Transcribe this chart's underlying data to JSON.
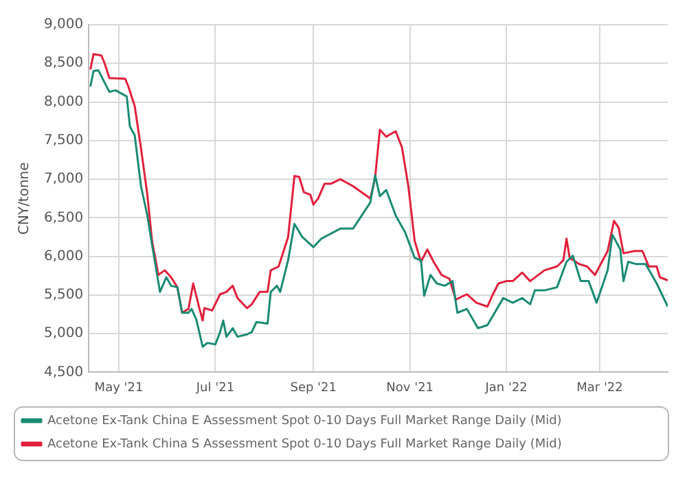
{
  "chart_data": {
    "type": "line",
    "ylabel": "CNY/tonne",
    "xlim": [
      "2021-04-12",
      "2022-04-13"
    ],
    "xticks": [
      {
        "value": "2021-05-01",
        "label": "May '21"
      },
      {
        "value": "2021-07-01",
        "label": "Jul '21"
      },
      {
        "value": "2021-09-01",
        "label": "Sep '21"
      },
      {
        "value": "2021-11-01",
        "label": "Nov '21"
      },
      {
        "value": "2022-01-01",
        "label": "Jan '22"
      },
      {
        "value": "2022-03-01",
        "label": "Mar '22"
      }
    ],
    "ylim": [
      4500,
      9000
    ],
    "yticks": [
      {
        "value": 4500,
        "label": "4,500"
      },
      {
        "value": 5000,
        "label": "5,000"
      },
      {
        "value": 5500,
        "label": "5,500"
      },
      {
        "value": 6000,
        "label": "6,000"
      },
      {
        "value": 6500,
        "label": "6,500"
      },
      {
        "value": 7000,
        "label": "7,000"
      },
      {
        "value": 7500,
        "label": "7,500"
      },
      {
        "value": 8000,
        "label": "8,000"
      },
      {
        "value": 8500,
        "label": "8,500"
      },
      {
        "value": 9000,
        "label": "9,000"
      }
    ],
    "grid": true,
    "legend": "bottom",
    "marker": "none",
    "line_style": "solid",
    "series": [
      {
        "name": "Acetone Ex-Tank China E Assessment Spot 0-10 Days Full Market Range Daily (Mid)",
        "color": "#1a8a73",
        "x": [
          "2021-04-13",
          "2021-04-15",
          "2021-04-18",
          "2021-04-21",
          "2021-04-25",
          "2021-04-29",
          "2021-05-06",
          "2021-05-08",
          "2021-05-11",
          "2021-05-15",
          "2021-05-19",
          "2021-05-22",
          "2021-05-27",
          "2021-05-31",
          "2021-06-03",
          "2021-06-07",
          "2021-06-10",
          "2021-06-14",
          "2021-06-16",
          "2021-06-19",
          "2021-06-23",
          "2021-06-26",
          "2021-07-01",
          "2021-07-04",
          "2021-07-06",
          "2021-07-08",
          "2021-07-12",
          "2021-07-15",
          "2021-07-21",
          "2021-07-24",
          "2021-07-27",
          "2021-08-03",
          "2021-08-05",
          "2021-08-09",
          "2021-08-11",
          "2021-08-16",
          "2021-08-20",
          "2021-08-25",
          "2021-09-01",
          "2021-09-06",
          "2021-09-18",
          "2021-09-26",
          "2021-09-28",
          "2021-10-07",
          "2021-10-10",
          "2021-10-13",
          "2021-10-17",
          "2021-10-23",
          "2021-10-29",
          "2021-11-04",
          "2021-11-08",
          "2021-11-10",
          "2021-11-14",
          "2021-11-18",
          "2021-11-23",
          "2021-11-28",
          "2021-12-01",
          "2021-12-07",
          "2021-12-14",
          "2021-12-20",
          "2021-12-26",
          "2021-12-30",
          "2022-01-05",
          "2022-01-11",
          "2022-01-16",
          "2022-01-19",
          "2022-01-25",
          "2022-02-02",
          "2022-02-08",
          "2022-02-12",
          "2022-02-17",
          "2022-02-22",
          "2022-02-27",
          "2022-03-06",
          "2022-03-09",
          "2022-03-14",
          "2022-03-16",
          "2022-03-19",
          "2022-03-24",
          "2022-03-30",
          "2022-04-06",
          "2022-04-13"
        ],
        "values": [
          8200,
          8400,
          8410,
          8290,
          8130,
          8150,
          8070,
          7680,
          7570,
          6910,
          6530,
          6150,
          5540,
          5730,
          5620,
          5600,
          5270,
          5270,
          5320,
          5180,
          4830,
          4880,
          4860,
          5020,
          5170,
          4960,
          5070,
          4960,
          4990,
          5020,
          5150,
          5130,
          5540,
          5620,
          5540,
          5950,
          6420,
          6250,
          6120,
          6230,
          6360,
          6360,
          6420,
          6700,
          7050,
          6780,
          6860,
          6530,
          6310,
          5980,
          5950,
          5490,
          5760,
          5650,
          5620,
          5680,
          5270,
          5320,
          5070,
          5110,
          5320,
          5460,
          5400,
          5460,
          5380,
          5560,
          5560,
          5600,
          5930,
          6010,
          5680,
          5680,
          5400,
          5820,
          6280,
          6090,
          5680,
          5930,
          5900,
          5900,
          5650,
          5350
        ]
      },
      {
        "name": "Acetone Ex-Tank China S Assessment Spot 0-10 Days Full Market Range Daily (Mid)",
        "color": "#e0203c",
        "x": [
          "2021-04-13",
          "2021-04-15",
          "2021-04-20",
          "2021-04-22",
          "2021-04-25",
          "2021-05-05",
          "2021-05-07",
          "2021-05-11",
          "2021-05-15",
          "2021-05-19",
          "2021-05-22",
          "2021-05-26",
          "2021-05-30",
          "2021-06-03",
          "2021-06-07",
          "2021-06-10",
          "2021-06-14",
          "2021-06-17",
          "2021-06-21",
          "2021-06-23",
          "2021-06-24",
          "2021-06-29",
          "2021-07-04",
          "2021-07-08",
          "2021-07-12",
          "2021-07-15",
          "2021-07-21",
          "2021-07-24",
          "2021-07-29",
          "2021-08-03",
          "2021-08-05",
          "2021-08-10",
          "2021-08-16",
          "2021-08-20",
          "2021-08-23",
          "2021-08-26",
          "2021-08-30",
          "2021-09-01",
          "2021-09-04",
          "2021-09-08",
          "2021-09-12",
          "2021-09-18",
          "2021-09-26",
          "2021-10-07",
          "2021-10-10",
          "2021-10-13",
          "2021-10-17",
          "2021-10-23",
          "2021-10-27",
          "2021-10-31",
          "2021-11-04",
          "2021-11-08",
          "2021-11-12",
          "2021-11-16",
          "2021-11-21",
          "2021-11-26",
          "2021-11-30",
          "2021-12-07",
          "2021-12-13",
          "2021-12-20",
          "2021-12-23",
          "2021-12-27",
          "2022-01-01",
          "2022-01-05",
          "2022-01-11",
          "2022-01-16",
          "2022-01-25",
          "2022-02-02",
          "2022-02-06",
          "2022-02-08",
          "2022-02-10",
          "2022-02-16",
          "2022-02-21",
          "2022-02-26",
          "2022-03-06",
          "2022-03-10",
          "2022-03-13",
          "2022-03-16",
          "2022-03-23",
          "2022-03-28",
          "2022-04-01",
          "2022-04-06",
          "2022-04-08",
          "2022-04-13"
        ],
        "values": [
          8420,
          8620,
          8600,
          8500,
          8310,
          8300,
          8200,
          7950,
          7400,
          6800,
          6200,
          5760,
          5820,
          5730,
          5600,
          5270,
          5320,
          5650,
          5320,
          5170,
          5330,
          5300,
          5510,
          5540,
          5620,
          5460,
          5330,
          5380,
          5540,
          5540,
          5820,
          5870,
          6250,
          7040,
          7030,
          6830,
          6800,
          6670,
          6750,
          6940,
          6940,
          7000,
          6910,
          6750,
          7020,
          7640,
          7550,
          7620,
          7410,
          6910,
          6200,
          5930,
          6090,
          5930,
          5760,
          5710,
          5440,
          5510,
          5400,
          5350,
          5490,
          5650,
          5680,
          5680,
          5790,
          5680,
          5820,
          5870,
          5950,
          6230,
          5980,
          5900,
          5870,
          5760,
          6070,
          6460,
          6370,
          6040,
          6070,
          6070,
          5870,
          5870,
          5730,
          5690
        ]
      }
    ]
  }
}
